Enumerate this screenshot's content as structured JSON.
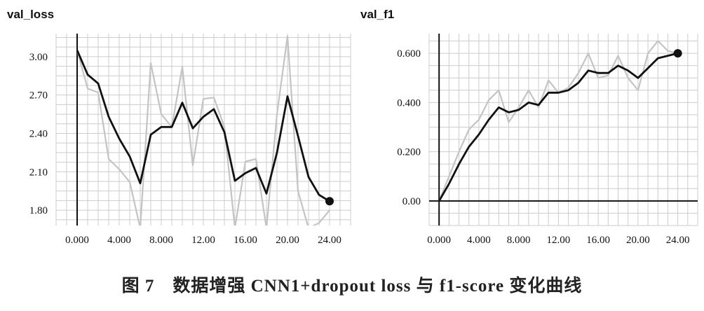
{
  "caption": "图 7　数据增强 CNN1+dropout loss 与 f1-score 变化曲线",
  "colors": {
    "smoothed": "#111111",
    "raw": "#c4c4c4",
    "grid": "#cccccc",
    "axis": "#111111"
  },
  "chart_data": [
    {
      "type": "line",
      "title": "val_loss",
      "xlabel": "",
      "ylabel": "",
      "xlim": [
        -2,
        26
      ],
      "ylim": [
        1.68,
        3.18
      ],
      "xticks": [
        0,
        4,
        8,
        12,
        16,
        20,
        24
      ],
      "xtick_labels": [
        "0.000",
        "4.000",
        "8.000",
        "12.00",
        "16.00",
        "20.00",
        "24.00"
      ],
      "yticks": [
        1.8,
        2.1,
        2.4,
        2.7,
        3.0
      ],
      "ytick_labels": [
        "1.80",
        "2.10",
        "2.40",
        "2.70",
        "3.00"
      ],
      "grid": true,
      "series": [
        {
          "x": [
            0,
            1,
            2,
            3,
            4,
            5,
            6,
            7,
            8,
            9,
            10,
            11,
            12,
            13,
            14,
            15,
            16,
            17,
            18,
            19,
            20,
            21,
            22,
            23,
            24
          ],
          "values": [
            3.05,
            2.75,
            2.72,
            2.2,
            2.12,
            2.02,
            1.66,
            2.95,
            2.55,
            2.45,
            2.92,
            2.15,
            2.67,
            2.68,
            2.45,
            1.66,
            2.18,
            2.2,
            1.66,
            2.55,
            3.16,
            1.95,
            1.66,
            1.7,
            1.8
          ]
        },
        {
          "x": [
            0,
            1,
            2,
            3,
            4,
            5,
            6,
            7,
            8,
            9,
            10,
            11,
            12,
            13,
            14,
            15,
            16,
            17,
            18,
            19,
            20,
            21,
            22,
            23,
            24
          ],
          "values": [
            3.05,
            2.86,
            2.79,
            2.53,
            2.36,
            2.22,
            2.01,
            2.39,
            2.45,
            2.45,
            2.64,
            2.44,
            2.53,
            2.59,
            2.41,
            2.03,
            2.09,
            2.13,
            1.93,
            2.25,
            2.69,
            2.38,
            2.06,
            1.92,
            1.87
          ]
        }
      ],
      "last_point": [
        24,
        1.87
      ]
    },
    {
      "type": "line",
      "title": "val_f1",
      "xlabel": "",
      "ylabel": "",
      "xlim": [
        -1,
        26
      ],
      "ylim": [
        -0.1,
        0.68
      ],
      "xticks": [
        0,
        4,
        8,
        12,
        16,
        20,
        24
      ],
      "xtick_labels": [
        "0.000",
        "4.000",
        "8.000",
        "12.00",
        "16.00",
        "20.00",
        "24.00"
      ],
      "yticks": [
        0,
        0.2,
        0.4,
        0.6
      ],
      "ytick_labels": [
        "0.00",
        "0.200",
        "0.400",
        "0.600"
      ],
      "grid": true,
      "series": [
        {
          "x": [
            0,
            1,
            2,
            3,
            4,
            5,
            6,
            7,
            8,
            9,
            10,
            11,
            12,
            13,
            14,
            15,
            16,
            17,
            18,
            19,
            20,
            21,
            22,
            23,
            24
          ],
          "values": [
            0.0,
            0.1,
            0.2,
            0.29,
            0.33,
            0.41,
            0.45,
            0.32,
            0.38,
            0.45,
            0.38,
            0.49,
            0.44,
            0.46,
            0.52,
            0.6,
            0.5,
            0.51,
            0.59,
            0.5,
            0.45,
            0.6,
            0.65,
            0.61,
            0.6
          ]
        },
        {
          "x": [
            0,
            1,
            2,
            3,
            4,
            5,
            6,
            7,
            8,
            9,
            10,
            11,
            12,
            13,
            14,
            15,
            16,
            17,
            18,
            19,
            20,
            21,
            22,
            23,
            24
          ],
          "values": [
            0.0,
            0.07,
            0.15,
            0.22,
            0.27,
            0.33,
            0.38,
            0.36,
            0.37,
            0.4,
            0.39,
            0.44,
            0.44,
            0.45,
            0.48,
            0.53,
            0.52,
            0.52,
            0.55,
            0.53,
            0.5,
            0.54,
            0.58,
            0.59,
            0.6
          ]
        }
      ],
      "last_point": [
        24,
        0.6
      ]
    }
  ]
}
